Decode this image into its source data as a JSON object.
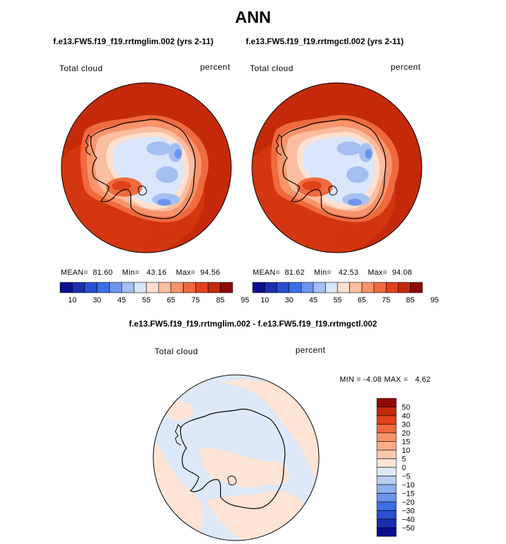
{
  "page": {
    "title": "ANN"
  },
  "panel_left": {
    "case": "f.e13.FW5.f19_f19.rrtmglim.002 (yrs 2-11)",
    "variable": "Total cloud",
    "units": "percent",
    "mean_label": "MEAN=",
    "mean": "81.60",
    "min_label": "Min=",
    "min": "43.16",
    "max_label": "Max=",
    "max": "94.56"
  },
  "panel_right": {
    "case": "f.e13.FW5.f19_f19.rrtmgctl.002 (yrs 2-11)",
    "variable": "Total cloud",
    "units": "percent",
    "mean_label": "MEAN=",
    "mean": "81.62",
    "min_label": "Min=",
    "min": "42.53",
    "max_label": "Max=",
    "max": "94.08"
  },
  "panel_diff": {
    "case": "f.e13.FW5.f19_f19.rrtmglim.002 - f.e13.FW5.f19_f19.rrtmgctl.002",
    "variable": "Total cloud",
    "units": "percent",
    "min_label": "MIN =",
    "min": "-4.08",
    "max_label": "MAX =",
    "max": "4.62"
  },
  "colorbar_abs": {
    "tick_labels": [
      "10",
      "30",
      "45",
      "55",
      "65",
      "75",
      "85",
      "95"
    ],
    "colors": [
      "#0a0f8c",
      "#1a2fb0",
      "#2a4fd0",
      "#3d6ee6",
      "#6b94ee",
      "#a5bff3",
      "#d9e6fb",
      "#fde0cf",
      "#fbbd9f",
      "#f7946b",
      "#ef6a3e",
      "#e2411c",
      "#c42a0a",
      "#8f0a04"
    ]
  },
  "colorbar_diff": {
    "tick_labels": [
      "50",
      "40",
      "30",
      "20",
      "15",
      "10",
      "5",
      "0",
      "−5",
      "−10",
      "−15",
      "−20",
      "−30",
      "−40",
      "−50"
    ],
    "colors": [
      "#8f0a04",
      "#c42a0a",
      "#e2411c",
      "#ef6a3e",
      "#f7946b",
      "#fbad88",
      "#fbc8ae",
      "#fde4d4",
      "#dde9f8",
      "#b9cdf4",
      "#8fb0ef",
      "#6b94ee",
      "#3d6ee6",
      "#2a4fd0",
      "#1a2fb0",
      "#0a0f8c"
    ]
  }
}
